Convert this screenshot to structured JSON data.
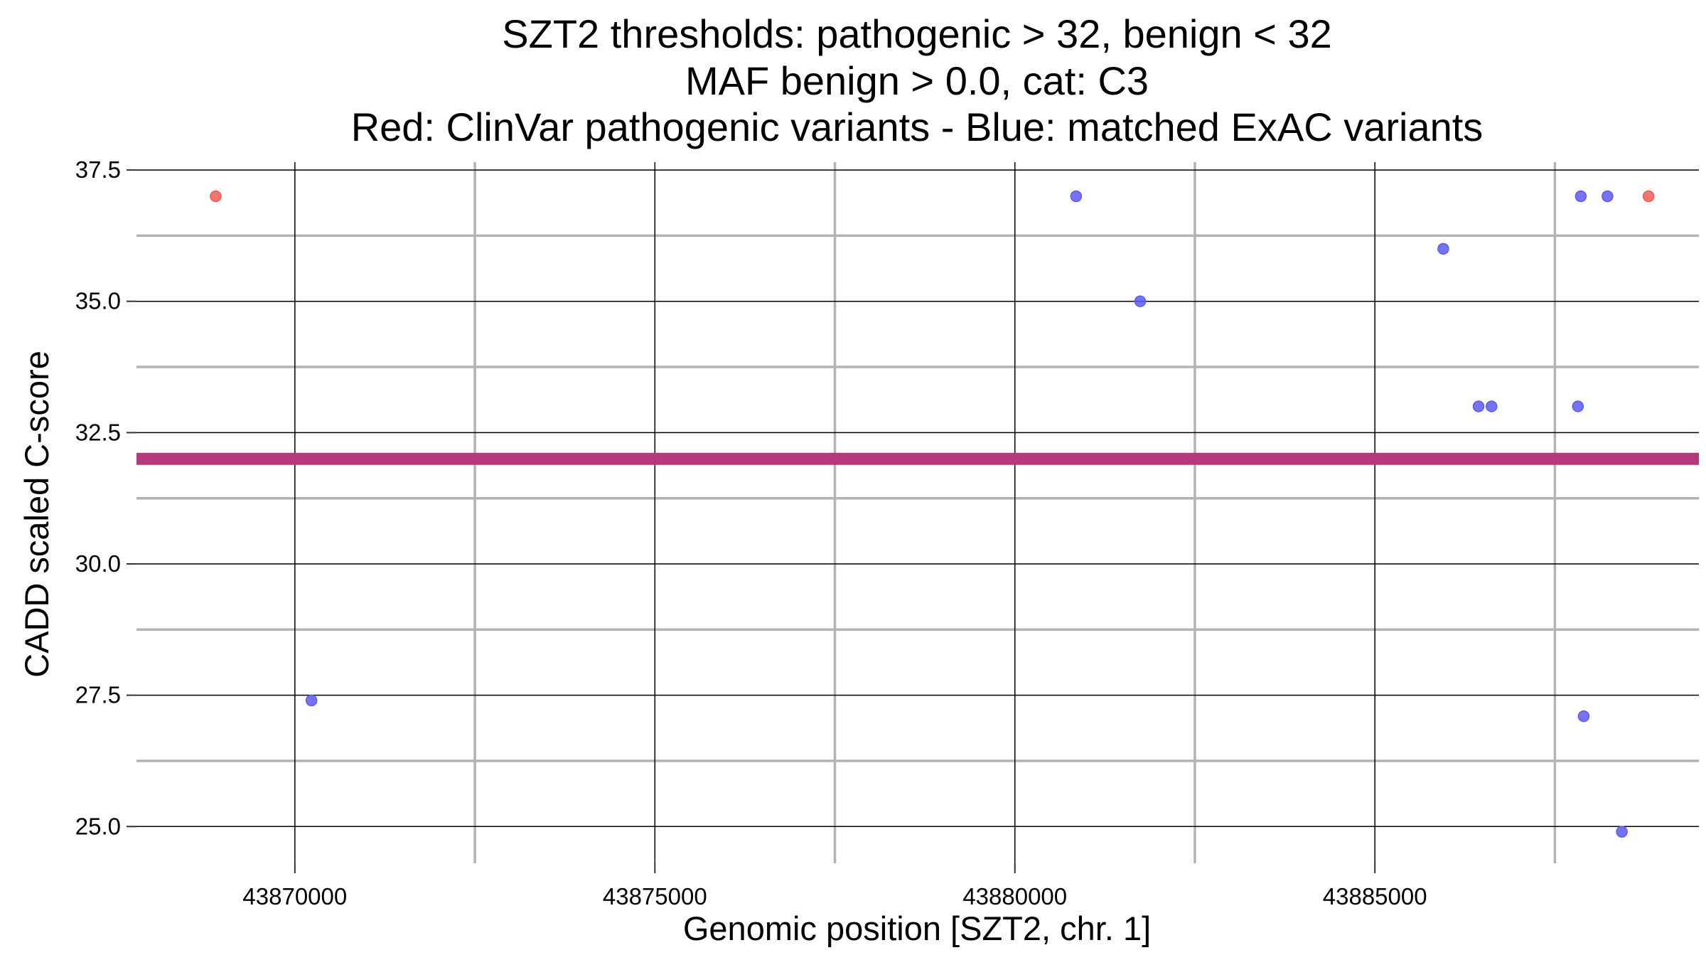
{
  "chart_data": {
    "type": "scatter",
    "title_lines": [
      "SZT2 thresholds: pathogenic > 32, benign < 32",
      "MAF benign > 0.0, cat: C3",
      "Red: ClinVar pathogenic variants - Blue: matched ExAC variants"
    ],
    "xlabel": "Genomic position [SZT2, chr. 1]",
    "ylabel": "CADD scaled C-score",
    "xlim": [
      43867800,
      43889500
    ],
    "ylim": [
      24.3,
      37.65
    ],
    "x_ticks": [
      43870000,
      43875000,
      43880000,
      43885000
    ],
    "x_tick_labels": [
      "43870000",
      "43875000",
      "43880000",
      "43885000"
    ],
    "x_minor_ticks": [
      43872500,
      43877500,
      43882500,
      43887500
    ],
    "y_ticks": [
      25.0,
      27.5,
      30.0,
      32.5,
      35.0,
      37.5
    ],
    "y_tick_labels": [
      "25.0",
      "27.5",
      "30.0",
      "32.5",
      "35.0",
      "37.5"
    ],
    "y_minor_ticks": [
      26.25,
      28.75,
      31.25,
      33.75,
      36.25
    ],
    "grid": true,
    "threshold": {
      "y": 32,
      "color": "#b5397a"
    },
    "series": [
      {
        "color": "#f25b5b",
        "points": [
          {
            "x": 43868900,
            "y": 37.0
          },
          {
            "x": 43888800,
            "y": 37.0
          }
        ]
      },
      {
        "color": "#5b5bf2",
        "points": [
          {
            "x": 43870230,
            "y": 27.4
          },
          {
            "x": 43880850,
            "y": 37.0
          },
          {
            "x": 43881740,
            "y": 35.0
          },
          {
            "x": 43885950,
            "y": 36.0
          },
          {
            "x": 43886440,
            "y": 33.0
          },
          {
            "x": 43886620,
            "y": 33.0
          },
          {
            "x": 43887820,
            "y": 33.0
          },
          {
            "x": 43887860,
            "y": 37.0
          },
          {
            "x": 43887900,
            "y": 27.1
          },
          {
            "x": 43888230,
            "y": 37.0
          },
          {
            "x": 43888430,
            "y": 24.9
          }
        ]
      }
    ]
  }
}
